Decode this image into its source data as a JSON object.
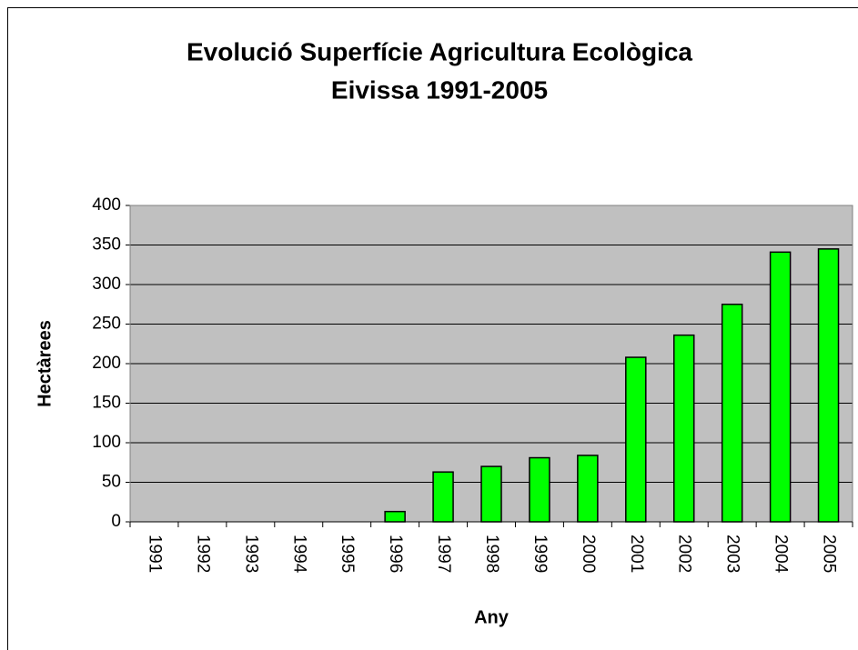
{
  "chart_data": {
    "type": "bar",
    "title": [
      "Evolució Superfície Agricultura Ecològica",
      "Eivissa 1991-2005"
    ],
    "x_label": "Any",
    "y_label": "Hectàrees",
    "categories": [
      "1991",
      "1992",
      "1993",
      "1994",
      "1995",
      "1996",
      "1997",
      "1998",
      "1999",
      "2000",
      "2001",
      "2002",
      "2003",
      "2004",
      "2005"
    ],
    "values": [
      0,
      0,
      0,
      0,
      0,
      13,
      63,
      70,
      81,
      84,
      208,
      236,
      275,
      341,
      345
    ],
    "color": "#00ff00",
    "ylim": [
      0,
      400
    ],
    "yticks": [
      0,
      50,
      100,
      150,
      200,
      250,
      300,
      350,
      400
    ],
    "grid": true
  }
}
